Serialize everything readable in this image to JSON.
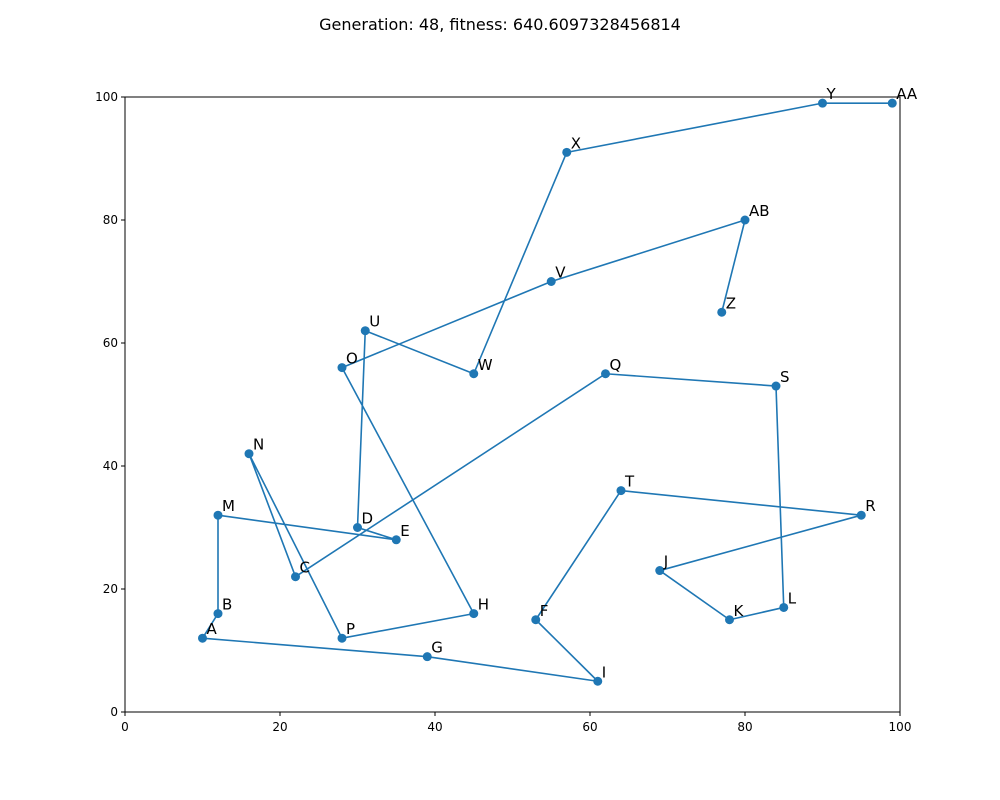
{
  "chart_data": {
    "type": "line",
    "title": "Generation: 48, fitness: 640.6097328456814",
    "xlabel": "",
    "ylabel": "",
    "xlim": [
      0,
      100
    ],
    "ylim": [
      0,
      100
    ],
    "x_ticks": [
      "0",
      "20",
      "40",
      "60",
      "80",
      "100"
    ],
    "y_ticks": [
      "0",
      "20",
      "40",
      "60",
      "80",
      "100"
    ],
    "grid": false,
    "color": "#1f77b4",
    "route": [
      {
        "label": "Y",
        "x": 90,
        "y": 99
      },
      {
        "label": "X",
        "x": 57,
        "y": 91
      },
      {
        "label": "W",
        "x": 45,
        "y": 55
      },
      {
        "label": "U",
        "x": 31,
        "y": 62
      },
      {
        "label": "D",
        "x": 30,
        "y": 30
      },
      {
        "label": "E",
        "x": 35,
        "y": 28
      },
      {
        "label": "M",
        "x": 12,
        "y": 32
      },
      {
        "label": "B",
        "x": 12,
        "y": 16
      },
      {
        "label": "A",
        "x": 10,
        "y": 12
      },
      {
        "label": "G",
        "x": 39,
        "y": 9
      },
      {
        "label": "I",
        "x": 61,
        "y": 5
      },
      {
        "label": "F",
        "x": 53,
        "y": 15
      },
      {
        "label": "T",
        "x": 64,
        "y": 36
      },
      {
        "label": "R",
        "x": 95,
        "y": 32
      },
      {
        "label": "J",
        "x": 69,
        "y": 23
      },
      {
        "label": "K",
        "x": 78,
        "y": 15
      },
      {
        "label": "L",
        "x": 85,
        "y": 17
      },
      {
        "label": "S",
        "x": 84,
        "y": 53
      },
      {
        "label": "Q",
        "x": 62,
        "y": 55
      },
      {
        "label": "C",
        "x": 22,
        "y": 22
      },
      {
        "label": "N",
        "x": 16,
        "y": 42
      },
      {
        "label": "P",
        "x": 28,
        "y": 12
      },
      {
        "label": "H",
        "x": 45,
        "y": 16
      },
      {
        "label": "O",
        "x": 28,
        "y": 56
      },
      {
        "label": "V",
        "x": 55,
        "y": 70
      },
      {
        "label": "AB",
        "x": 80,
        "y": 80
      },
      {
        "label": "Z",
        "x": 77,
        "y": 65
      }
    ],
    "closing_edge": {
      "from": {
        "label": "AA",
        "x": 99,
        "y": 99
      },
      "to": {
        "label": "Y",
        "x": 90,
        "y": 99
      }
    }
  }
}
